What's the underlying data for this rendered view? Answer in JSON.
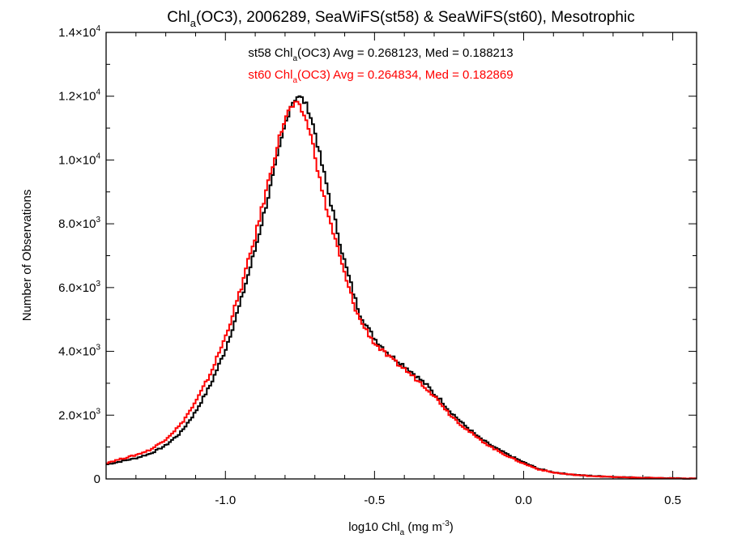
{
  "chart_data": {
    "type": "line",
    "title": {
      "pre": "Chl",
      "sub": "a",
      "post": "(OC3), 2006289, SeaWiFS(st58) & SeaWiFS(st60), Mesotrophic"
    },
    "xlabel": {
      "pre": "log10 Chl",
      "sub": "a",
      "mid": " (mg m",
      "sup": "-3",
      "post": ")"
    },
    "ylabel": "Number of Observations",
    "xlim": [
      -1.4,
      0.58
    ],
    "ylim": [
      0,
      14000
    ],
    "x_ticks": [
      {
        "value": -1.0,
        "label": "-1.0"
      },
      {
        "value": -0.5,
        "label": "-0.5"
      },
      {
        "value": 0.0,
        "label": "0.0"
      },
      {
        "value": 0.5,
        "label": "0.5"
      }
    ],
    "y_ticks": [
      {
        "value": 0,
        "mant": "0",
        "exp": ""
      },
      {
        "value": 2000,
        "mant": "2.0×10",
        "exp": "3"
      },
      {
        "value": 4000,
        "mant": "4.0×10",
        "exp": "3"
      },
      {
        "value": 6000,
        "mant": "6.0×10",
        "exp": "3"
      },
      {
        "value": 8000,
        "mant": "8.0×10",
        "exp": "3"
      },
      {
        "value": 10000,
        "mant": "1.0×10",
        "exp": "4"
      },
      {
        "value": 12000,
        "mant": "1.2×10",
        "exp": "4"
      },
      {
        "value": 14000,
        "mant": "1.4×10",
        "exp": "4"
      }
    ],
    "annotations": [
      {
        "pre": "st58 Chl",
        "sub": "a",
        "post": "(OC3) Avg = 0.268123, Med = 0.188213",
        "color": "#000000"
      },
      {
        "pre": "st60 Chl",
        "sub": "a",
        "post": "(OC3) Avg = 0.264834, Med = 0.182869",
        "color": "#ff0000"
      }
    ],
    "series": [
      {
        "color": "#000000",
        "points": [
          [
            -1.4,
            450
          ],
          [
            -1.3,
            650
          ],
          [
            -1.25,
            800
          ],
          [
            -1.2,
            1050
          ],
          [
            -1.15,
            1450
          ],
          [
            -1.1,
            2100
          ],
          [
            -1.05,
            2950
          ],
          [
            -1.0,
            4050
          ],
          [
            -0.95,
            5500
          ],
          [
            -0.9,
            7200
          ],
          [
            -0.85,
            9100
          ],
          [
            -0.82,
            10300
          ],
          [
            -0.8,
            11100
          ],
          [
            -0.78,
            11750
          ],
          [
            -0.76,
            12000
          ],
          [
            -0.74,
            11900
          ],
          [
            -0.72,
            11550
          ],
          [
            -0.7,
            10900
          ],
          [
            -0.68,
            10000
          ],
          [
            -0.65,
            8800
          ],
          [
            -0.62,
            7600
          ],
          [
            -0.6,
            6800
          ],
          [
            -0.57,
            5800
          ],
          [
            -0.55,
            5200
          ],
          [
            -0.52,
            4700
          ],
          [
            -0.5,
            4400
          ],
          [
            -0.45,
            3900
          ],
          [
            -0.4,
            3550
          ],
          [
            -0.35,
            3150
          ],
          [
            -0.32,
            2900
          ],
          [
            -0.3,
            2650
          ],
          [
            -0.28,
            2500
          ],
          [
            -0.25,
            2150
          ],
          [
            -0.2,
            1700
          ],
          [
            -0.15,
            1300
          ],
          [
            -0.1,
            1000
          ],
          [
            -0.05,
            750
          ],
          [
            0.0,
            520
          ],
          [
            0.05,
            320
          ],
          [
            0.1,
            210
          ],
          [
            0.15,
            150
          ],
          [
            0.2,
            110
          ],
          [
            0.3,
            65
          ],
          [
            0.4,
            40
          ],
          [
            0.5,
            20
          ],
          [
            0.58,
            10
          ]
        ]
      },
      {
        "color": "#ff0000",
        "points": [
          [
            -1.4,
            500
          ],
          [
            -1.3,
            750
          ],
          [
            -1.25,
            920
          ],
          [
            -1.2,
            1250
          ],
          [
            -1.15,
            1700
          ],
          [
            -1.1,
            2400
          ],
          [
            -1.05,
            3300
          ],
          [
            -1.0,
            4450
          ],
          [
            -0.95,
            5900
          ],
          [
            -0.9,
            7600
          ],
          [
            -0.85,
            9550
          ],
          [
            -0.82,
            10650
          ],
          [
            -0.8,
            11300
          ],
          [
            -0.78,
            11650
          ],
          [
            -0.76,
            11750
          ],
          [
            -0.74,
            11500
          ],
          [
            -0.72,
            11000
          ],
          [
            -0.7,
            10200
          ],
          [
            -0.68,
            9200
          ],
          [
            -0.65,
            8100
          ],
          [
            -0.62,
            7100
          ],
          [
            -0.6,
            6400
          ],
          [
            -0.57,
            5500
          ],
          [
            -0.55,
            5000
          ],
          [
            -0.52,
            4550
          ],
          [
            -0.5,
            4250
          ],
          [
            -0.45,
            3800
          ],
          [
            -0.4,
            3450
          ],
          [
            -0.35,
            3050
          ],
          [
            -0.32,
            2800
          ],
          [
            -0.3,
            2600
          ],
          [
            -0.28,
            2400
          ],
          [
            -0.25,
            2050
          ],
          [
            -0.2,
            1620
          ],
          [
            -0.15,
            1250
          ],
          [
            -0.1,
            950
          ],
          [
            -0.05,
            700
          ],
          [
            0.0,
            480
          ],
          [
            0.05,
            300
          ],
          [
            0.1,
            200
          ],
          [
            0.15,
            145
          ],
          [
            0.2,
            105
          ],
          [
            0.3,
            60
          ],
          [
            0.4,
            35
          ],
          [
            0.5,
            18
          ],
          [
            0.58,
            8
          ]
        ]
      }
    ]
  }
}
